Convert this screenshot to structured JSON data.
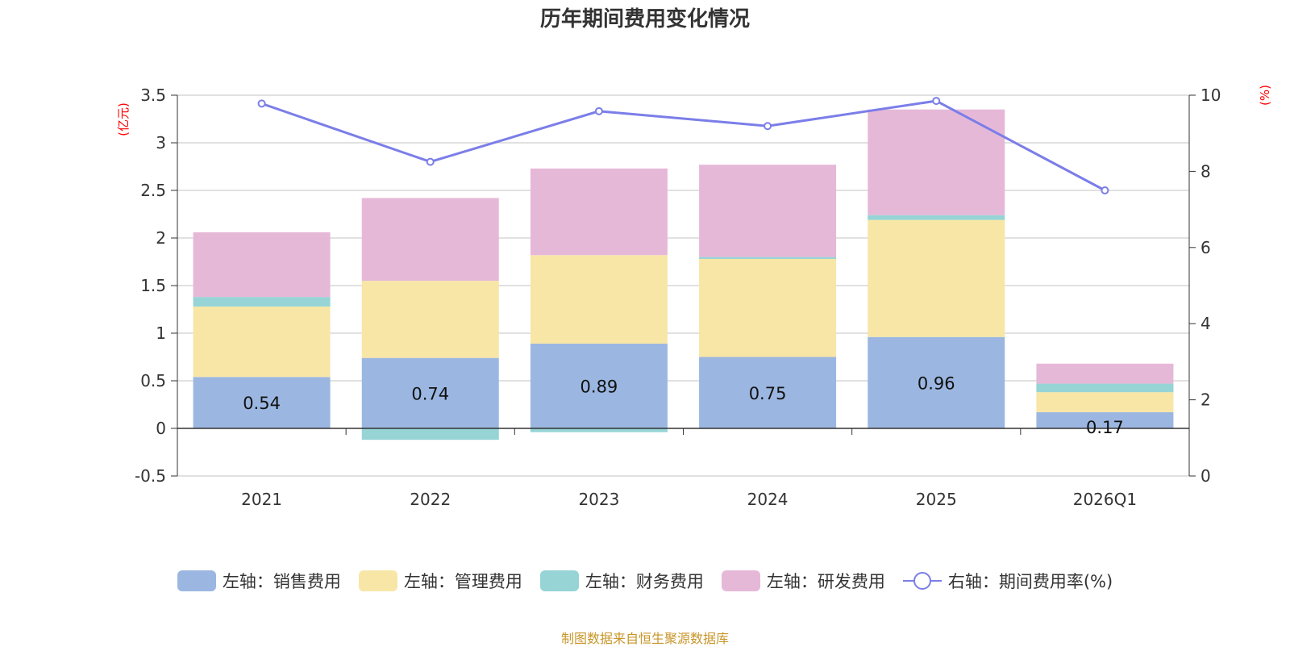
{
  "colors": {
    "sales": "#9bb7e1",
    "admin": "#f8e6a6",
    "finance": "#96d4d6",
    "rd": "#e6b8d8",
    "rate_line": "#7b7ee8",
    "unit_red": "#ff0000",
    "source": "#c8962a"
  },
  "chart_data": {
    "type": "bar",
    "stacked": true,
    "title": "历年期间费用变化情况",
    "categories": [
      "2021",
      "2022",
      "2023",
      "2024",
      "2025",
      "2026Q1"
    ],
    "left_axis": {
      "unit": "(亿元)",
      "ylim": [
        -0.5,
        3.5
      ],
      "ticks": [
        -0.5,
        0,
        0.5,
        1,
        1.5,
        2,
        2.5,
        3,
        3.5
      ],
      "tick_labels": [
        "-0.5",
        "0",
        "0.5",
        "1",
        "1.5",
        "2",
        "2.5",
        "3",
        "3.5"
      ]
    },
    "right_axis": {
      "unit": "(%)",
      "ylim": [
        0,
        10
      ],
      "ticks": [
        0,
        2,
        4,
        6,
        8,
        10
      ],
      "tick_labels": [
        "0",
        "2",
        "4",
        "6",
        "8",
        "10"
      ]
    },
    "series": [
      {
        "key": "sales",
        "name": "左轴：销售费用",
        "axis": "left",
        "type": "bar",
        "values": [
          0.54,
          0.74,
          0.89,
          0.75,
          0.96,
          0.17
        ],
        "labels": [
          "0.54",
          "0.74",
          "0.89",
          "0.75",
          "0.96",
          "0.17"
        ]
      },
      {
        "key": "admin",
        "name": "左轴：管理费用",
        "axis": "left",
        "type": "bar",
        "values": [
          0.74,
          0.81,
          0.93,
          1.03,
          1.23,
          0.21
        ]
      },
      {
        "key": "finance",
        "name": "左轴：财务费用",
        "axis": "left",
        "type": "bar",
        "values": [
          0.1,
          -0.12,
          -0.04,
          0.02,
          0.05,
          0.09
        ]
      },
      {
        "key": "rd",
        "name": "左轴：研发费用",
        "axis": "left",
        "type": "bar",
        "values": [
          0.68,
          0.87,
          0.91,
          0.97,
          1.11,
          0.21
        ]
      },
      {
        "key": "rate",
        "name": "右轴：期间费用率(%)",
        "axis": "right",
        "type": "line",
        "values": [
          9.78,
          8.25,
          9.58,
          9.19,
          9.85,
          7.5
        ]
      }
    ],
    "source": "制图数据来自恒生聚源数据库"
  }
}
